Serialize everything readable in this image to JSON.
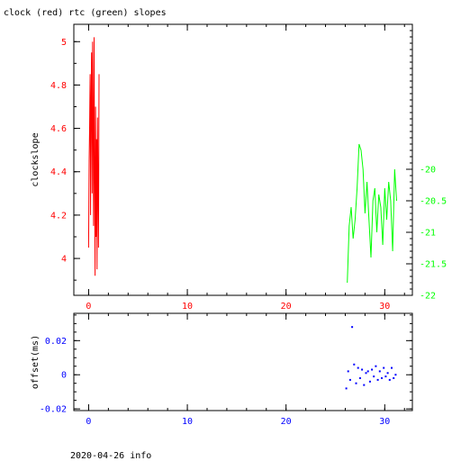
{
  "title": "clock (red) rtc (green) slopes",
  "footer": "2020-04-26 info",
  "colors": {
    "clock": "#ff0000",
    "rtc": "#00ff00",
    "offset": "#0000ff",
    "axis": "#000000",
    "bg": "#ffffff"
  },
  "chart_data": [
    {
      "type": "line",
      "title": "clock (red) rtc (green) slopes",
      "xlabel": "",
      "ylabel": "clockslope",
      "y2label": "",
      "xlim": [
        -1.5,
        32.8
      ],
      "ylim": [
        3.83,
        5.08
      ],
      "y2lim": [
        -22.0,
        -17.7
      ],
      "xticks": [
        0,
        10,
        20,
        30
      ],
      "xtick_labels": [
        "0",
        "10",
        "20",
        "30"
      ],
      "yticks": [
        4.0,
        4.2,
        4.4,
        4.6,
        4.8,
        5.0
      ],
      "ytick_labels": [
        "4",
        "4.2",
        "4.4",
        "4.6",
        "4.8",
        "5"
      ],
      "y2ticks": [
        -22.0,
        -21.5,
        -21.0,
        -20.5,
        -20.0
      ],
      "y2tick_labels": [
        "-22",
        "-21.5",
        "-21",
        "-20.5",
        "-20"
      ],
      "grid": false,
      "series": [
        {
          "name": "clock",
          "axis": "left",
          "color": "#ff0000",
          "x": [
            0.0,
            0.05,
            0.1,
            0.15,
            0.2,
            0.25,
            0.3,
            0.35,
            0.4,
            0.45,
            0.5,
            0.55,
            0.6,
            0.65,
            0.7,
            0.75,
            0.8,
            0.85,
            0.9,
            0.95,
            1.0,
            1.05
          ],
          "y": [
            4.05,
            4.45,
            4.6,
            4.85,
            4.2,
            4.75,
            4.95,
            4.3,
            5.0,
            4.6,
            4.15,
            5.02,
            4.4,
            3.92,
            4.7,
            4.1,
            4.55,
            3.95,
            4.65,
            4.3,
            4.05,
            4.85
          ]
        },
        {
          "name": "rtc",
          "axis": "right",
          "color": "#00ff00",
          "x": [
            26.2,
            26.4,
            26.6,
            26.8,
            27.0,
            27.2,
            27.4,
            27.6,
            27.8,
            28.0,
            28.2,
            28.4,
            28.6,
            28.8,
            29.0,
            29.2,
            29.4,
            29.6,
            29.8,
            30.0,
            30.2,
            30.4,
            30.6,
            30.8,
            31.0,
            31.2
          ],
          "y": [
            -21.8,
            -20.9,
            -20.6,
            -21.1,
            -20.8,
            -20.3,
            -19.6,
            -19.7,
            -20.0,
            -20.7,
            -20.2,
            -20.8,
            -21.4,
            -20.5,
            -20.3,
            -21.0,
            -20.4,
            -20.6,
            -21.2,
            -20.3,
            -20.8,
            -20.2,
            -20.5,
            -21.3,
            -20.0,
            -20.5
          ]
        }
      ]
    },
    {
      "type": "scatter",
      "title": "",
      "xlabel": "",
      "ylabel": "offset(ms)",
      "xlim": [
        -1.5,
        32.8
      ],
      "ylim": [
        -0.021,
        0.036
      ],
      "xticks": [
        0,
        10,
        20,
        30
      ],
      "xtick_labels": [
        "0",
        "10",
        "20",
        "30"
      ],
      "yticks": [
        -0.02,
        0.0,
        0.02
      ],
      "ytick_labels": [
        "-0.02",
        "0",
        "0.02"
      ],
      "grid": false,
      "series": [
        {
          "name": "offset",
          "color": "#0000ff",
          "x": [
            26.1,
            26.3,
            26.5,
            26.7,
            26.9,
            27.1,
            27.3,
            27.5,
            27.7,
            27.9,
            28.1,
            28.3,
            28.5,
            28.7,
            28.9,
            29.1,
            29.3,
            29.5,
            29.7,
            29.9,
            30.1,
            30.3,
            30.5,
            30.7,
            30.9,
            31.1
          ],
          "y": [
            -0.008,
            0.002,
            -0.003,
            0.028,
            0.006,
            -0.005,
            0.004,
            -0.002,
            0.003,
            -0.006,
            0.001,
            0.002,
            -0.004,
            0.003,
            -0.001,
            0.005,
            -0.003,
            0.002,
            -0.002,
            0.004,
            -0.001,
            0.001,
            -0.003,
            0.004,
            -0.002,
            0.0
          ]
        }
      ]
    }
  ]
}
